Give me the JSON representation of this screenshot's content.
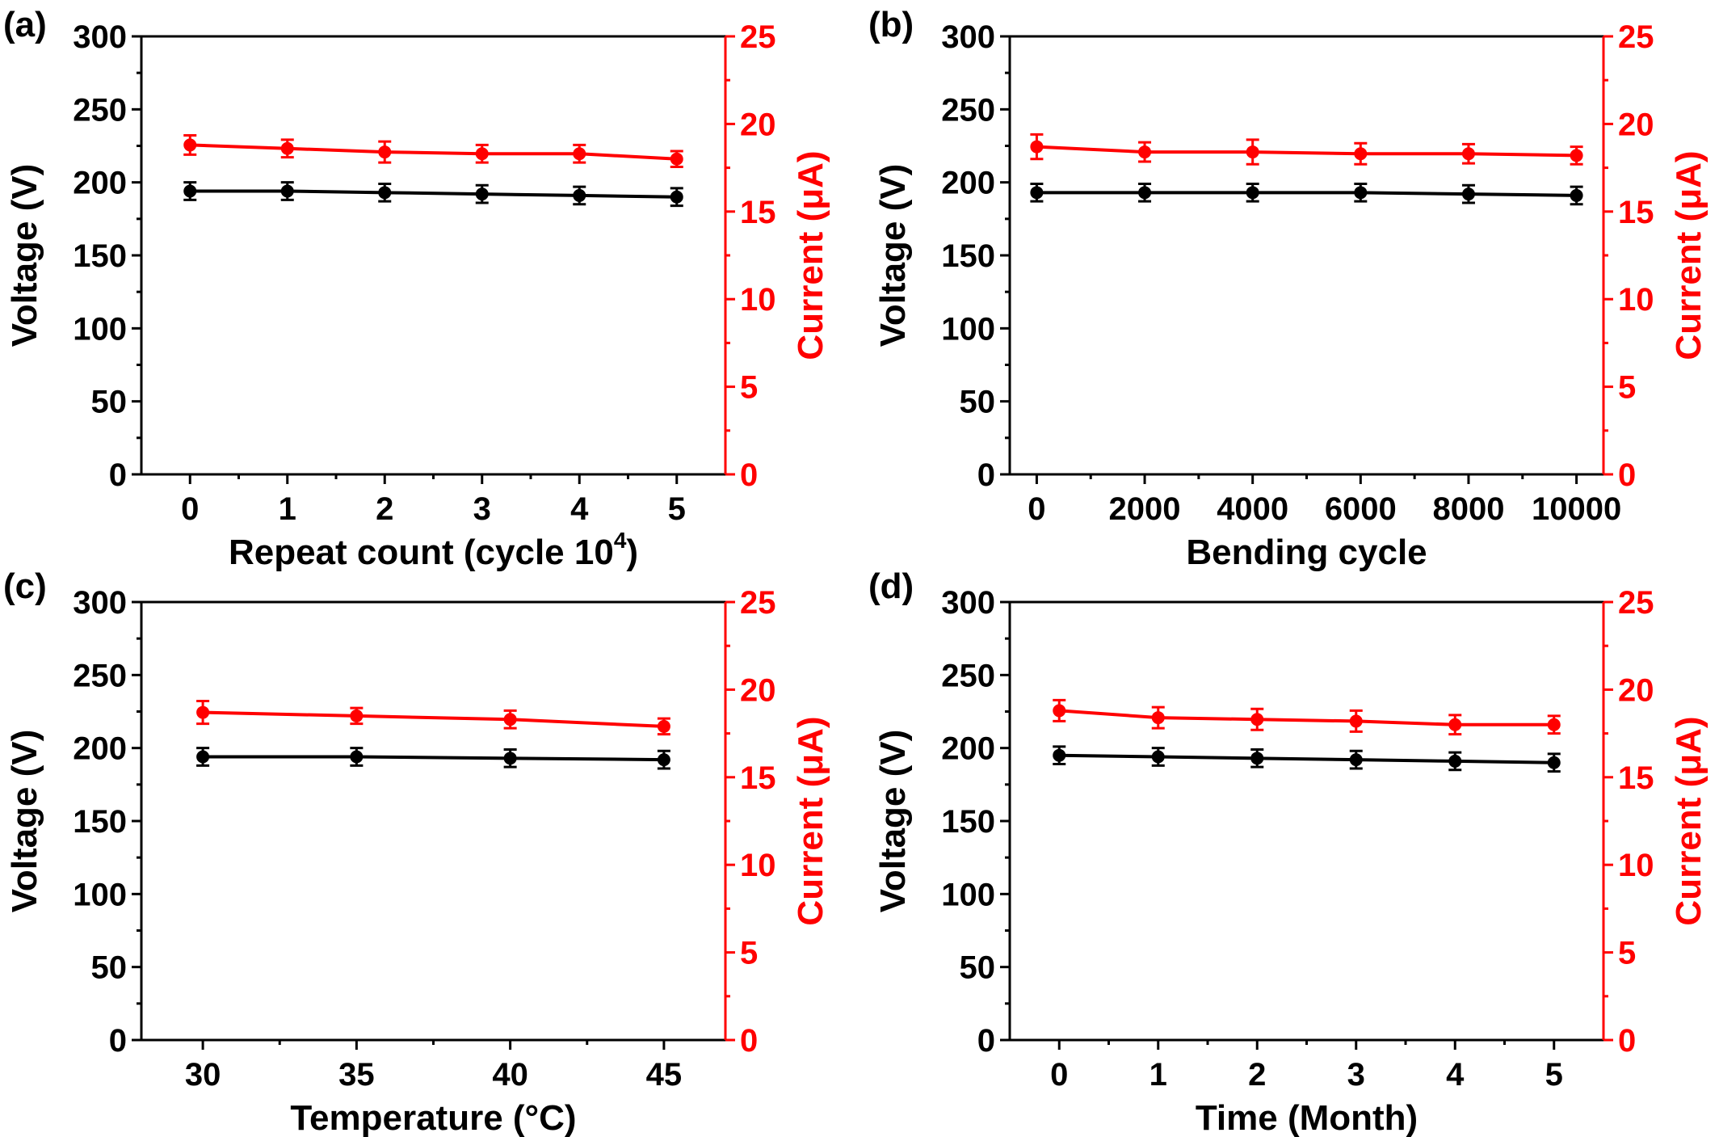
{
  "colors": {
    "voltage": "#000000",
    "current": "#ff0000",
    "axis": "#000000"
  },
  "chart_data": [
    {
      "panel_label": "(a)",
      "type": "line",
      "xlabel": "Repeat count (cycle 10",
      "xlabel_sup": "4",
      "xlabel_end": ")",
      "ylabel_left": "Voltage (V)",
      "ylabel_right": "Current (μA)",
      "xlim": [
        -0.5,
        5.5
      ],
      "xticks": [
        "0",
        "1",
        "2",
        "3",
        "4",
        "5"
      ],
      "xtick_values": [
        0,
        1,
        2,
        3,
        4,
        5
      ],
      "ylim_left": [
        0,
        300
      ],
      "yticks_left": [
        "0",
        "50",
        "100",
        "150",
        "200",
        "250",
        "300"
      ],
      "ylim_right": [
        0,
        25
      ],
      "yticks_right": [
        "0",
        "5",
        "10",
        "15",
        "20",
        "25"
      ],
      "series": [
        {
          "axis": "left",
          "color": "#000000",
          "x": [
            0,
            1,
            2,
            3,
            4,
            5
          ],
          "y": [
            194,
            194,
            193,
            192,
            191,
            190
          ],
          "err": [
            6,
            6,
            6,
            6,
            6,
            6
          ]
        },
        {
          "axis": "right",
          "color": "#ff0000",
          "x": [
            0,
            1,
            2,
            3,
            4,
            5
          ],
          "y": [
            18.8,
            18.6,
            18.4,
            18.3,
            18.3,
            18.0
          ],
          "err": [
            0.55,
            0.5,
            0.6,
            0.5,
            0.5,
            0.45
          ]
        }
      ]
    },
    {
      "panel_label": "(b)",
      "type": "line",
      "xlabel": "Bending cycle",
      "xlabel_sup": "",
      "xlabel_end": "",
      "ylabel_left": "Voltage (V)",
      "ylabel_right": "Current (μA)",
      "xlim": [
        -500,
        10500
      ],
      "xticks": [
        "0",
        "2000",
        "4000",
        "6000",
        "8000",
        "10000"
      ],
      "xtick_values": [
        0,
        2000,
        4000,
        6000,
        8000,
        10000
      ],
      "ylim_left": [
        0,
        300
      ],
      "yticks_left": [
        "0",
        "50",
        "100",
        "150",
        "200",
        "250",
        "300"
      ],
      "ylim_right": [
        0,
        25
      ],
      "yticks_right": [
        "0",
        "5",
        "10",
        "15",
        "20",
        "25"
      ],
      "series": [
        {
          "axis": "left",
          "color": "#000000",
          "x": [
            0,
            2000,
            4000,
            6000,
            8000,
            10000
          ],
          "y": [
            193,
            193,
            193,
            193,
            192,
            191
          ],
          "err": [
            6,
            6,
            6,
            6,
            6,
            6
          ]
        },
        {
          "axis": "right",
          "color": "#ff0000",
          "x": [
            0,
            2000,
            4000,
            6000,
            8000,
            10000
          ],
          "y": [
            18.7,
            18.4,
            18.4,
            18.3,
            18.3,
            18.2
          ],
          "err": [
            0.7,
            0.55,
            0.7,
            0.6,
            0.55,
            0.5
          ]
        }
      ]
    },
    {
      "panel_label": "(c)",
      "type": "line",
      "xlabel": "Temperature (°C)",
      "xlabel_sup": "",
      "xlabel_end": "",
      "ylabel_left": "Voltage (V)",
      "ylabel_right": "Current (μA)",
      "xlim": [
        28,
        47
      ],
      "xticks": [
        "30",
        "35",
        "40",
        "45"
      ],
      "xtick_values": [
        30,
        35,
        40,
        45
      ],
      "ylim_left": [
        0,
        300
      ],
      "yticks_left": [
        "0",
        "50",
        "100",
        "150",
        "200",
        "250",
        "300"
      ],
      "ylim_right": [
        0,
        25
      ],
      "yticks_right": [
        "0",
        "5",
        "10",
        "15",
        "20",
        "25"
      ],
      "series": [
        {
          "axis": "left",
          "color": "#000000",
          "x": [
            30,
            35,
            40,
            45
          ],
          "y": [
            194,
            194,
            193,
            192
          ],
          "err": [
            6,
            6,
            6,
            6
          ]
        },
        {
          "axis": "right",
          "color": "#ff0000",
          "x": [
            30,
            35,
            40,
            45
          ],
          "y": [
            18.7,
            18.5,
            18.3,
            17.9
          ],
          "err": [
            0.65,
            0.45,
            0.5,
            0.45
          ]
        }
      ]
    },
    {
      "panel_label": "(d)",
      "type": "line",
      "xlabel": "Time (Month)",
      "xlabel_sup": "",
      "xlabel_end": "",
      "ylabel_left": "Voltage (V)",
      "ylabel_right": "Current (μA)",
      "xlim": [
        -0.5,
        5.5
      ],
      "xticks": [
        "0",
        "1",
        "2",
        "3",
        "4",
        "5"
      ],
      "xtick_values": [
        0,
        1,
        2,
        3,
        4,
        5
      ],
      "ylim_left": [
        0,
        300
      ],
      "yticks_left": [
        "0",
        "50",
        "100",
        "150",
        "200",
        "250",
        "300"
      ],
      "ylim_right": [
        0,
        25
      ],
      "yticks_right": [
        "0",
        "5",
        "10",
        "15",
        "20",
        "25"
      ],
      "series": [
        {
          "axis": "left",
          "color": "#000000",
          "x": [
            0,
            1,
            2,
            3,
            4,
            5
          ],
          "y": [
            195,
            194,
            193,
            192,
            191,
            190
          ],
          "err": [
            6,
            6,
            6,
            6,
            6,
            6
          ]
        },
        {
          "axis": "right",
          "color": "#ff0000",
          "x": [
            0,
            1,
            2,
            3,
            4,
            5
          ],
          "y": [
            18.8,
            18.4,
            18.3,
            18.2,
            18.0,
            18.0
          ],
          "err": [
            0.6,
            0.6,
            0.6,
            0.6,
            0.55,
            0.5
          ]
        }
      ]
    }
  ]
}
